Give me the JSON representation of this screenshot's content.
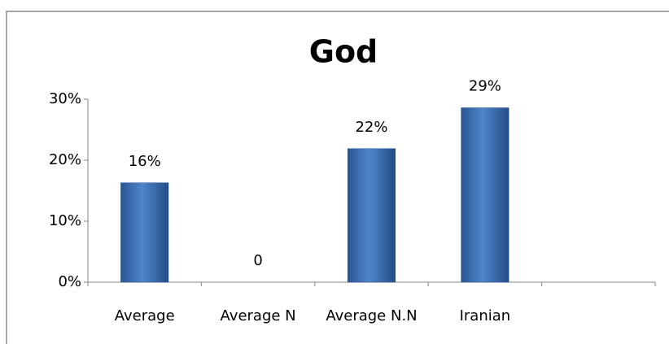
{
  "chart_data": {
    "type": "bar",
    "title": "God",
    "categories": [
      "Average",
      "Average N",
      "Average N.N",
      "Iranian",
      null
    ],
    "values": [
      16.3,
      0,
      21.9,
      28.6,
      null
    ],
    "value_labels": [
      "16%",
      "0",
      "22%",
      "29%",
      null
    ],
    "color": "#3f72b8",
    "ylim": [
      0,
      30
    ],
    "yticks": [
      {
        "value": 0,
        "label": "0%"
      },
      {
        "value": 10,
        "label": "10%"
      },
      {
        "value": 20,
        "label": "20%"
      },
      {
        "value": 30,
        "label": "30%"
      }
    ],
    "grid": false
  }
}
